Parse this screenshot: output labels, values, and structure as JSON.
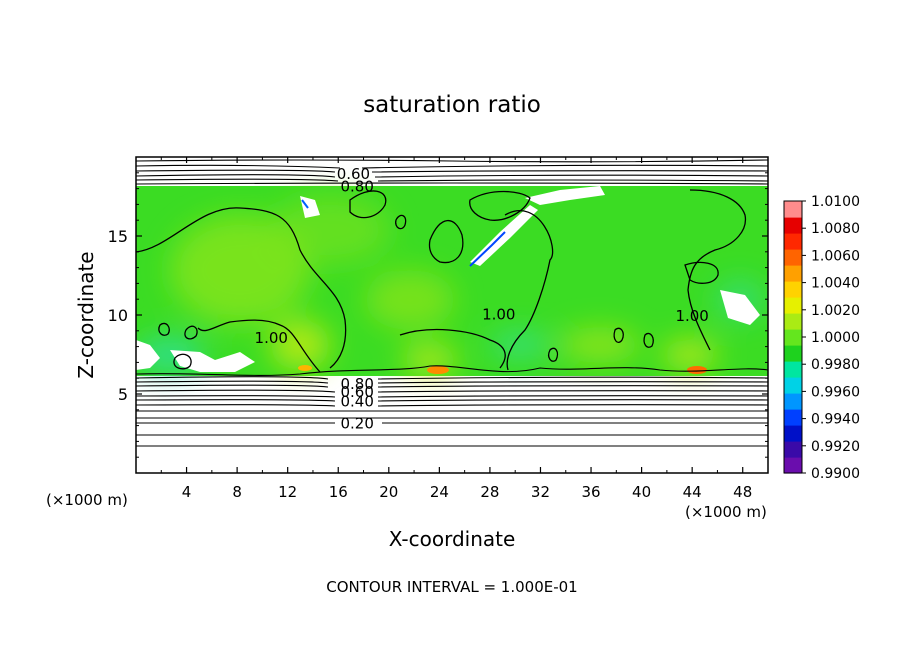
{
  "chart_data": {
    "type": "heatmap",
    "title": "saturation ratio",
    "xlabel": "X-coordinate",
    "ylabel": "Z-coordinate",
    "x_unit_left": "(×1000 m)",
    "x_unit_right": "(×1000 m)",
    "xlim": [
      0,
      50
    ],
    "ylim": [
      0,
      20
    ],
    "x_ticks": [
      4,
      8,
      12,
      16,
      20,
      24,
      28,
      32,
      36,
      40,
      44,
      48
    ],
    "y_ticks": [
      5,
      10,
      15
    ],
    "contour_interval_text": "CONTOUR INTERVAL = 1.000E-01",
    "colorbar": {
      "min": 0.99,
      "max": 1.01,
      "tick_labels": [
        "1.0100",
        "1.0080",
        "1.0060",
        "1.0040",
        "1.0020",
        "1.0000",
        "0.9980",
        "0.9960",
        "0.9940",
        "0.9920",
        "0.9900"
      ],
      "colors": [
        "#6a0dad",
        "#3a0aa8",
        "#0010c8",
        "#0040ff",
        "#0096ff",
        "#00d2e6",
        "#00e6a0",
        "#1ed21e",
        "#64e61e",
        "#aaeb14",
        "#e6f000",
        "#ffd200",
        "#ffa000",
        "#ff6400",
        "#ff2800",
        "#e60000",
        "#ff8c8c"
      ]
    },
    "contour_labels": [
      {
        "text": "0.60",
        "x": 17.2,
        "z": 19.0
      },
      {
        "text": "0.80",
        "x": 17.5,
        "z": 18.2
      },
      {
        "text": "1.00",
        "x": 10.7,
        "z": 8.6
      },
      {
        "text": "1.00",
        "x": 28.7,
        "z": 10.1
      },
      {
        "text": "1.00",
        "x": 44.0,
        "z": 10.0
      },
      {
        "text": "0.80",
        "x": 17.5,
        "z": 5.7
      },
      {
        "text": "0.60",
        "x": 17.5,
        "z": 5.2
      },
      {
        "text": "0.40",
        "x": 17.5,
        "z": 4.6
      },
      {
        "text": "0.20",
        "x": 17.5,
        "z": 3.2
      }
    ]
  }
}
